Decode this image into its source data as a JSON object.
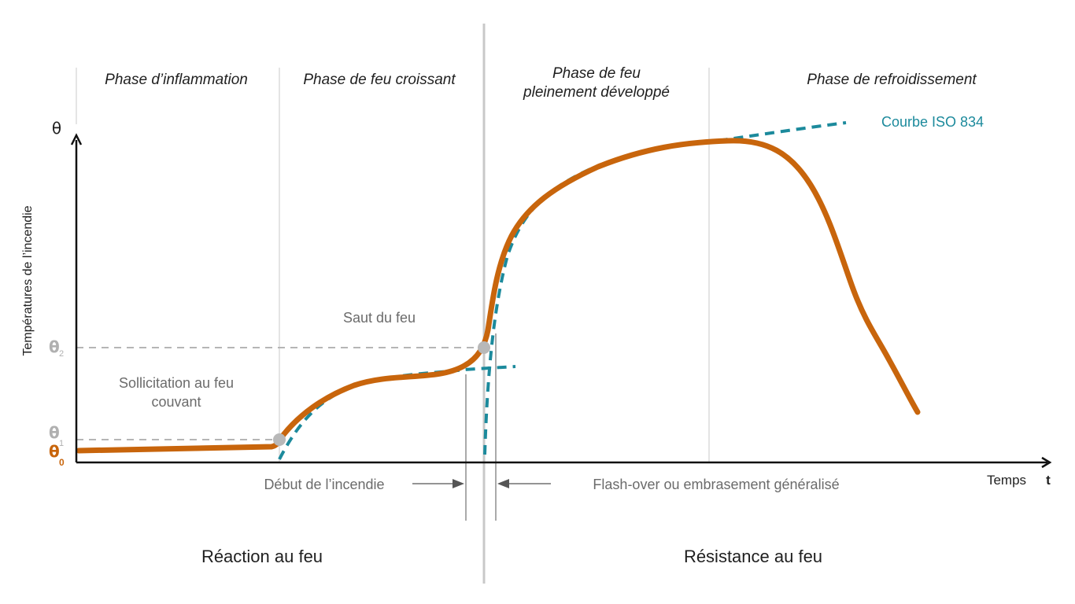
{
  "phases": {
    "p1": "Phase d’inflammation",
    "p2": "Phase de feu croissant",
    "p3_line1": "Phase de feu",
    "p3_line2": "pleinement développé",
    "p4": "Phase de refroidissement"
  },
  "axes": {
    "y_symbol": "θ",
    "y_label": "Températures de l’incendie",
    "x_label": "Temps",
    "x_symbol": "t"
  },
  "levels": {
    "theta0": "θ",
    "theta0_sub": "0",
    "theta1": "θ",
    "theta1_sub": "1",
    "theta2": "θ",
    "theta2_sub": "2"
  },
  "annotations": {
    "iso": "Courbe ISO 834",
    "saut": "Saut du feu",
    "sollicitation_line1": "Sollicitation au feu",
    "sollicitation_line2": "couvant",
    "debut": "Début de l’incendie",
    "flashover": "Flash-over ou embrasement généralisé"
  },
  "sections": {
    "reaction": "Réaction au feu",
    "resistance": "Résistance au feu"
  },
  "colors": {
    "fire_curve": "#c8650c",
    "iso_curve": "#1c8a9c",
    "axis": "#111111",
    "guide": "#b5b5b5",
    "point": "#b8b8b8"
  }
}
